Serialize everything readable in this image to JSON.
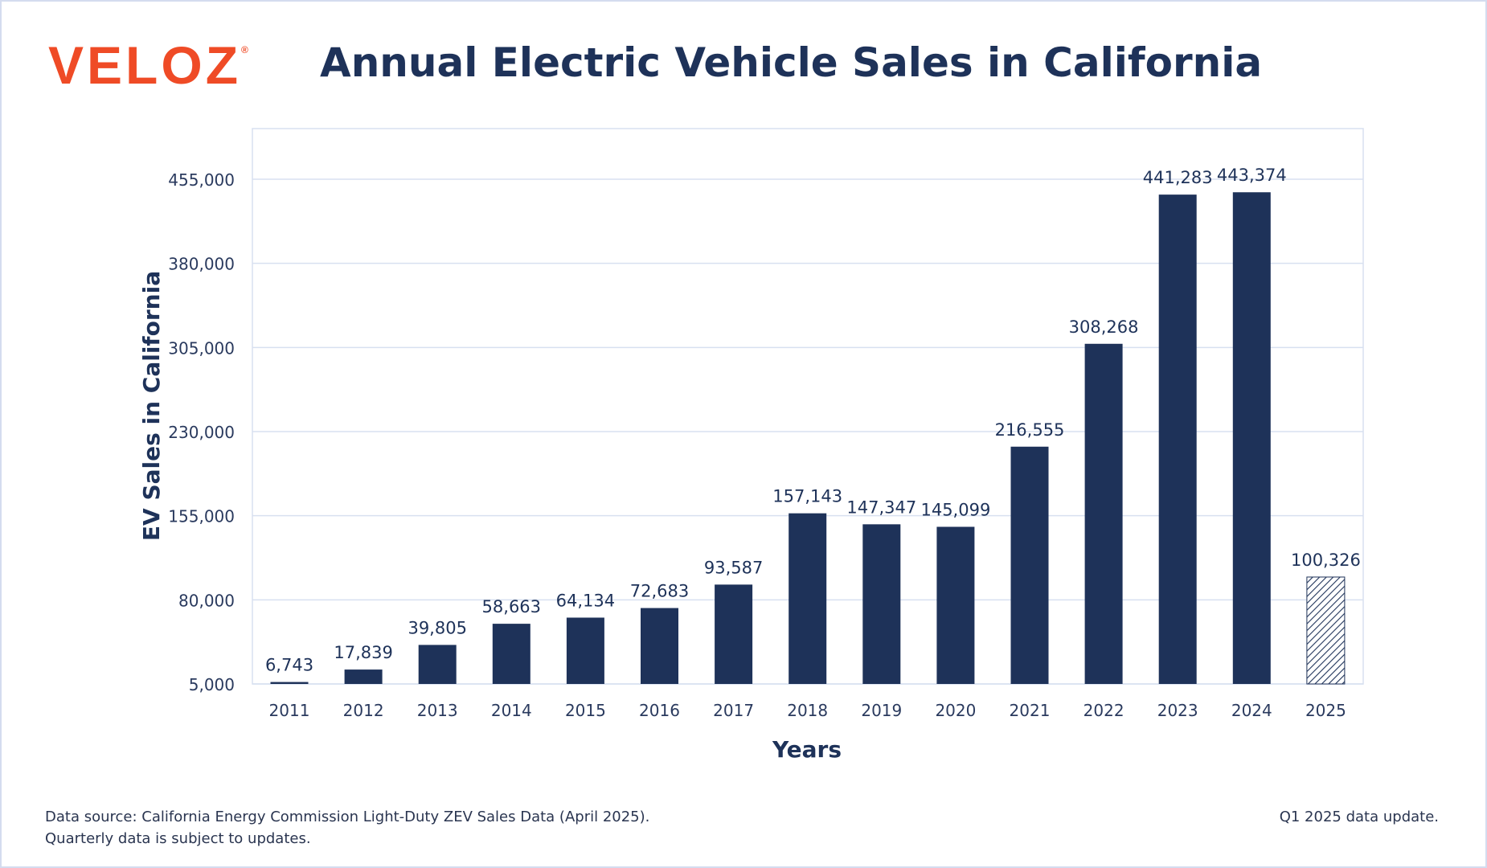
{
  "brand": {
    "logo_text": "VELOZ",
    "registered_mark": "®",
    "accent_color": "#ef4b26"
  },
  "header": {
    "title": "Annual Electric Vehicle Sales in California"
  },
  "chart_data": {
    "type": "bar",
    "title": "Annual Electric Vehicle Sales in California",
    "xlabel": "Years",
    "ylabel": "EV Sales in California",
    "categories": [
      "2011",
      "2012",
      "2013",
      "2014",
      "2015",
      "2016",
      "2017",
      "2018",
      "2019",
      "2020",
      "2021",
      "2022",
      "2023",
      "2024",
      "2025"
    ],
    "values": [
      6743,
      17839,
      39805,
      58663,
      64134,
      72683,
      93587,
      157143,
      147347,
      145099,
      216555,
      308268,
      441283,
      443374,
      100326
    ],
    "data_labels": [
      "6,743",
      "17,839",
      "39,805",
      "58,663",
      "64,134",
      "72,683",
      "93,587",
      "157,143",
      "147,347",
      "145,099",
      "216,555",
      "308,268",
      "441,283",
      "443,374",
      "100,326"
    ],
    "y_ticks": [
      5000,
      80000,
      155000,
      230000,
      305000,
      380000,
      455000
    ],
    "y_tick_labels": [
      "5,000",
      "80,000",
      "155,000",
      "230,000",
      "305,000",
      "380,000",
      "455,000"
    ],
    "ylim": [
      5000,
      500000
    ],
    "grid": "horizontal",
    "bar_color": "#1e3259",
    "partial_year_pattern": "hatched",
    "partial_categories": [
      "2025"
    ]
  },
  "footer": {
    "source_line1": "Data source: California Energy Commission Light-Duty ZEV Sales Data (April 2025).",
    "source_line2": "Quarterly data is subject to updates.",
    "update_note": "Q1 2025 data update."
  }
}
